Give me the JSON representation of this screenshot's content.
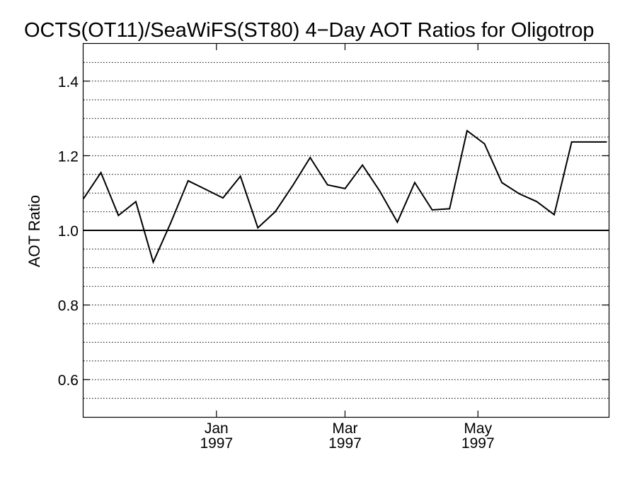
{
  "chart_data": {
    "type": "line",
    "title": "OCTS(OT11)/SeaWiFS(ST80) 4−Day AOT Ratios for Oligotrop",
    "xlabel": "",
    "ylabel": "AOT Ratio",
    "ylim": [
      0.5,
      1.5
    ],
    "y_ticks": [
      {
        "value": 0.6,
        "label": "0.6"
      },
      {
        "value": 0.8,
        "label": "0.8"
      },
      {
        "value": 1.0,
        "label": "1.0"
      },
      {
        "value": 1.2,
        "label": "1.2"
      },
      {
        "value": 1.4,
        "label": "1.4"
      }
    ],
    "y_gridlines": [
      0.55,
      0.6,
      0.65,
      0.7,
      0.75,
      0.8,
      0.85,
      0.9,
      0.95,
      1.05,
      1.1,
      1.15,
      1.2,
      1.25,
      1.3,
      1.35,
      1.4,
      1.45
    ],
    "grid": "dotted horizontal",
    "reference_line": 1.0,
    "xlim": [
      "1996-11-01",
      "1997-06-30"
    ],
    "x_ticks": [
      {
        "date": "1997-01-01",
        "month": "Jan",
        "year": "1997"
      },
      {
        "date": "1997-03-01",
        "month": "Mar",
        "year": "1997"
      },
      {
        "date": "1997-05-01",
        "month": "May",
        "year": "1997"
      }
    ],
    "series": [
      {
        "color": "#000000",
        "x": [
          "1996-11-01",
          "1996-11-09",
          "1996-11-17",
          "1996-11-25",
          "1996-12-03",
          "1996-12-11",
          "1996-12-19",
          "1996-12-27",
          "1997-01-04",
          "1997-01-12",
          "1997-01-20",
          "1997-01-28",
          "1997-02-05",
          "1997-02-13",
          "1997-02-21",
          "1997-03-01",
          "1997-03-09",
          "1997-03-17",
          "1997-03-25",
          "1997-04-02",
          "1997-04-10",
          "1997-04-18",
          "1997-04-26",
          "1997-05-04",
          "1997-05-12",
          "1997-05-20",
          "1997-05-28",
          "1997-06-05",
          "1997-06-13",
          "1997-06-21",
          "1997-06-29"
        ],
        "y": [
          1.085,
          1.155,
          1.04,
          1.077,
          0.915,
          1.02,
          1.133,
          1.11,
          1.087,
          1.145,
          1.007,
          1.05,
          1.12,
          1.195,
          1.122,
          1.112,
          1.175,
          1.105,
          1.022,
          1.128,
          1.055,
          1.058,
          1.267,
          1.232,
          1.128,
          1.098,
          1.077,
          1.042,
          1.237,
          1.237,
          1.237
        ]
      }
    ]
  }
}
